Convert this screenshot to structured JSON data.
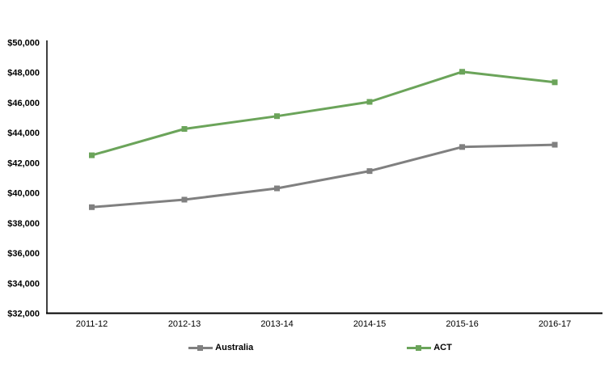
{
  "chart_data": {
    "type": "line",
    "categories": [
      "2011-12",
      "2012-13",
      "2013-14",
      "2014-15",
      "2015-16",
      "2016-17"
    ],
    "series": [
      {
        "name": "Australia",
        "color": "#808080",
        "values": [
          39050,
          39550,
          40300,
          41450,
          43050,
          43200
        ]
      },
      {
        "name": "ACT",
        "color": "#6BA45A",
        "values": [
          42500,
          44250,
          45100,
          46050,
          48050,
          47350
        ]
      }
    ],
    "title": "",
    "xlabel": "",
    "ylabel": "",
    "ylim": [
      32000,
      50000
    ],
    "ytick_step": 2000,
    "ytick_prefix": "$",
    "grid": false,
    "marker": "square",
    "legend_position": "bottom"
  },
  "colors": {
    "axis": "#000000",
    "tick_text": "#000000",
    "background": "#ffffff"
  }
}
